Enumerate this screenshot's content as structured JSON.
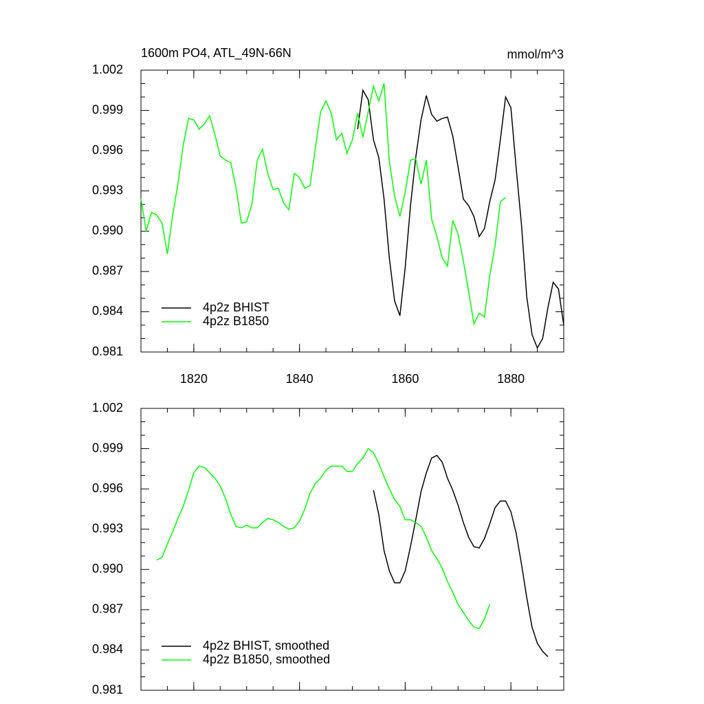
{
  "chart_data": [
    {
      "type": "line",
      "title": "1600m PO4, ATL_49N-66N",
      "units_label": "mmol/m^3",
      "xlim": [
        1810,
        1890
      ],
      "xticks": [
        1820,
        1840,
        1860,
        1880
      ],
      "xtick_labels": true,
      "ylim": [
        0.981,
        1.002
      ],
      "yticks": [
        0.981,
        0.984,
        0.987,
        {
          "value": 0.99,
          "label": "0.990"
        },
        0.993,
        0.996,
        0.999,
        1.002
      ],
      "legend": "lower left",
      "series": [
        {
          "name": "4p2z BHIST",
          "color": "#000000",
          "x": [
            1851,
            1852,
            1853,
            1854,
            1855,
            1856,
            1857,
            1858,
            1859,
            1860,
            1861,
            1862,
            1863,
            1864,
            1865,
            1866,
            1867,
            1868,
            1869,
            1870,
            1871,
            1872,
            1873,
            1874,
            1875,
            1876,
            1877,
            1878,
            1879,
            1880,
            1881,
            1882,
            1883,
            1884,
            1885,
            1886,
            1887,
            1888,
            1889,
            1890
          ],
          "values": [
            0.9976,
            1.0005,
            0.9998,
            0.9968,
            0.9955,
            0.9924,
            0.988,
            0.9848,
            0.9837,
            0.9873,
            0.9919,
            0.9955,
            0.9983,
            1.0001,
            0.9987,
            0.9982,
            0.9984,
            0.9985,
            0.9971,
            0.9948,
            0.9924,
            0.9919,
            0.9911,
            0.9896,
            0.9902,
            0.9922,
            0.9938,
            0.9968,
            1.0,
            0.9992,
            0.9947,
            0.9905,
            0.9851,
            0.9823,
            0.9813,
            0.982,
            0.9843,
            0.9862,
            0.9857,
            0.983
          ]
        },
        {
          "name": "4p2z B1850",
          "color": "#00ff00",
          "x": [
            1810,
            1811,
            1812,
            1813,
            1814,
            1815,
            1816,
            1817,
            1818,
            1819,
            1820,
            1821,
            1822,
            1823,
            1824,
            1825,
            1826,
            1827,
            1828,
            1829,
            1830,
            1831,
            1832,
            1833,
            1834,
            1835,
            1836,
            1837,
            1838,
            1839,
            1840,
            1841,
            1842,
            1843,
            1844,
            1845,
            1846,
            1847,
            1848,
            1849,
            1850,
            1851,
            1852,
            1853,
            1854,
            1855,
            1856,
            1857,
            1858,
            1859,
            1860,
            1861,
            1862,
            1863,
            1864,
            1865,
            1866,
            1867,
            1868,
            1869,
            1870,
            1871,
            1872,
            1873,
            1874,
            1875,
            1876,
            1877,
            1878,
            1879
          ],
          "values": [
            0.9924,
            0.99,
            0.9914,
            0.9912,
            0.9906,
            0.9883,
            0.9912,
            0.9935,
            0.9964,
            0.9984,
            0.9983,
            0.9976,
            0.998,
            0.9986,
            0.9972,
            0.9956,
            0.9953,
            0.9951,
            0.9932,
            0.9906,
            0.9907,
            0.992,
            0.9953,
            0.9961,
            0.9943,
            0.9931,
            0.9932,
            0.9921,
            0.9916,
            0.9943,
            0.994,
            0.9932,
            0.9934,
            0.9962,
            0.9989,
            0.9997,
            0.9988,
            0.9968,
            0.9973,
            0.9958,
            0.9968,
            0.9988,
            0.997,
            0.9989,
            1.0008,
            0.9997,
            1.001,
            0.9952,
            0.9926,
            0.9911,
            0.9929,
            0.9953,
            0.9954,
            0.9935,
            0.9953,
            0.9909,
            0.9896,
            0.988,
            0.9874,
            0.9908,
            0.9898,
            0.9878,
            0.9855,
            0.9831,
            0.9839,
            0.9836,
            0.9867,
            0.9889,
            0.9922,
            0.9925
          ]
        }
      ]
    },
    {
      "type": "line",
      "xlim": [
        1810,
        1890
      ],
      "xticks": [
        1820,
        1840,
        1860,
        1880
      ],
      "xtick_labels": false,
      "ylim": [
        0.981,
        1.002
      ],
      "yticks": [
        0.981,
        0.984,
        0.987,
        {
          "value": 0.99,
          "label": "0.990"
        },
        0.993,
        0.996,
        0.999,
        1.002
      ],
      "legend": "lower left",
      "series": [
        {
          "name": "4p2z BHIST, smoothed",
          "color": "#000000",
          "x": [
            1854,
            1855,
            1856,
            1857,
            1858,
            1859,
            1860,
            1861,
            1862,
            1863,
            1864,
            1865,
            1866,
            1867,
            1868,
            1869,
            1870,
            1871,
            1872,
            1873,
            1874,
            1875,
            1876,
            1877,
            1878,
            1879,
            1880,
            1881,
            1882,
            1883,
            1884,
            1885,
            1886,
            1887
          ],
          "values": [
            0.9959,
            0.9941,
            0.9914,
            0.9899,
            0.989,
            0.989,
            0.9899,
            0.9917,
            0.9937,
            0.9958,
            0.9972,
            0.9983,
            0.9985,
            0.998,
            0.9968,
            0.9959,
            0.9948,
            0.9935,
            0.9924,
            0.9917,
            0.9916,
            0.9923,
            0.9934,
            0.9946,
            0.9951,
            0.9951,
            0.9943,
            0.9927,
            0.9904,
            0.9879,
            0.9857,
            0.9845,
            0.9839,
            0.9835
          ]
        },
        {
          "name": "4p2z B1850, smoothed",
          "color": "#00ff00",
          "x": [
            1813,
            1814,
            1815,
            1816,
            1817,
            1818,
            1819,
            1820,
            1821,
            1822,
            1823,
            1824,
            1825,
            1826,
            1827,
            1828,
            1829,
            1830,
            1831,
            1832,
            1833,
            1834,
            1835,
            1836,
            1837,
            1838,
            1839,
            1840,
            1841,
            1842,
            1843,
            1844,
            1845,
            1846,
            1847,
            1848,
            1849,
            1850,
            1851,
            1852,
            1853,
            1854,
            1855,
            1856,
            1857,
            1858,
            1859,
            1860,
            1861,
            1862,
            1863,
            1864,
            1865,
            1866,
            1867,
            1868,
            1869,
            1870,
            1871,
            1872,
            1873,
            1874,
            1875,
            1876
          ],
          "values": [
            0.9907,
            0.9909,
            0.9919,
            0.9928,
            0.9938,
            0.9947,
            0.9959,
            0.9972,
            0.9977,
            0.9976,
            0.9972,
            0.9968,
            0.9962,
            0.9953,
            0.9941,
            0.9932,
            0.9931,
            0.9933,
            0.9931,
            0.9931,
            0.9935,
            0.9938,
            0.9937,
            0.9935,
            0.9932,
            0.993,
            0.9931,
            0.9936,
            0.9945,
            0.9957,
            0.9964,
            0.9968,
            0.9974,
            0.9977,
            0.9977,
            0.9977,
            0.9973,
            0.9973,
            0.9979,
            0.9983,
            0.999,
            0.9987,
            0.9979,
            0.9969,
            0.996,
            0.9952,
            0.9947,
            0.9937,
            0.9937,
            0.9935,
            0.9932,
            0.9924,
            0.9914,
            0.9908,
            0.9901,
            0.9891,
            0.9883,
            0.9874,
            0.9868,
            0.9862,
            0.9857,
            0.9856,
            0.9863,
            0.9874
          ]
        }
      ]
    }
  ]
}
